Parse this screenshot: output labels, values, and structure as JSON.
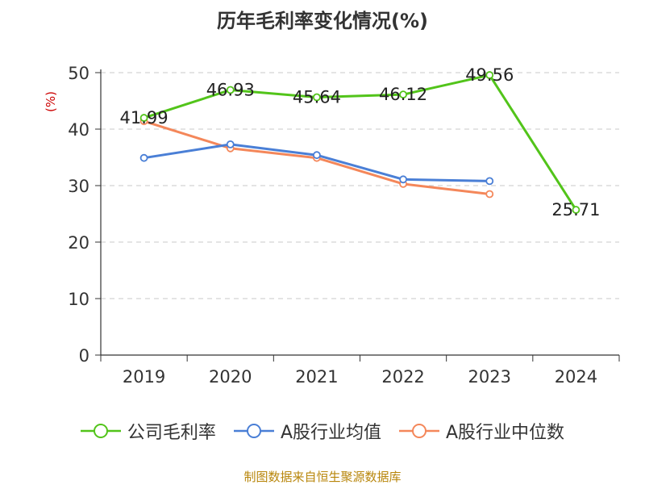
{
  "chart_data": {
    "type": "line",
    "title": "历年毛利率变化情况(%)",
    "ylabel": "(%)",
    "xlabel": "",
    "categories": [
      "2019",
      "2020",
      "2021",
      "2022",
      "2023",
      "2024"
    ],
    "ylim": [
      0,
      50
    ],
    "yticks": [
      0,
      10,
      20,
      30,
      40,
      50
    ],
    "grid": true,
    "legend_position": "bottom",
    "series": [
      {
        "name": "公司毛利率",
        "color": "#52c41a",
        "values": [
          41.99,
          46.93,
          45.64,
          46.12,
          49.56,
          25.71
        ],
        "labels": [
          "41.99",
          "46.93",
          "45.64",
          "46.12",
          "49.56",
          "25.71"
        ]
      },
      {
        "name": "A股行业均值",
        "color": "#4a7fd6",
        "values": [
          34.9,
          37.3,
          35.4,
          31.1,
          30.8,
          null
        ]
      },
      {
        "name": "A股行业中位数",
        "color": "#f4875a",
        "values": [
          41.4,
          36.6,
          34.9,
          30.3,
          28.5,
          null
        ]
      }
    ],
    "source": "制图数据来自恒生聚源数据库"
  }
}
